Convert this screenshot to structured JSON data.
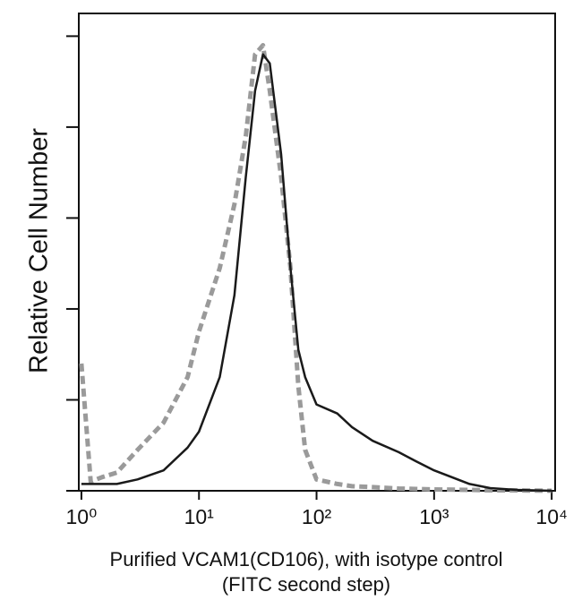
{
  "chart_data": {
    "type": "line",
    "y_label": "Relative Cell Number",
    "x_label_lines": [
      "Purified VCAM1(CD106), with isotype control",
      "(FITC second step)"
    ],
    "x_log_scale": true,
    "xlim": [
      0.95,
      10700
    ],
    "xticks": [
      {
        "value": 1,
        "label": "10⁰"
      },
      {
        "value": 10,
        "label": "10¹"
      },
      {
        "value": 100,
        "label": "10²"
      },
      {
        "value": 1000,
        "label": "10³"
      },
      {
        "value": 10000,
        "label": "10⁴"
      }
    ],
    "ylim": [
      0,
      105
    ],
    "yticks": [
      0,
      20,
      40,
      60,
      80,
      100
    ],
    "ytick_labels": false,
    "x": [
      1,
      1.2,
      1.5,
      2,
      3,
      5,
      8,
      10,
      15,
      20,
      25,
      30,
      35,
      40,
      50,
      60,
      70,
      80,
      100,
      150,
      200,
      300,
      500,
      700,
      1000,
      2000,
      3000,
      5000,
      10000
    ],
    "series": [
      {
        "color": "#9a9a9a",
        "dashed": true,
        "values": [
          28,
          2,
          3,
          4,
          9,
          15,
          25,
          35,
          49,
          63,
          78,
          96,
          98,
          88,
          69,
          49,
          23,
          9,
          2.5,
          1.5,
          1,
          0.8,
          0.5,
          0.4,
          0.3,
          0.2,
          0.1,
          0.1,
          0
        ]
      },
      {
        "color": "#1a1a1a",
        "dashed": false,
        "values": [
          1.5,
          1.5,
          1.5,
          1.5,
          2.5,
          4.5,
          9.5,
          13,
          25,
          43,
          69,
          88,
          96,
          94,
          74,
          49,
          31,
          25,
          19,
          17,
          14,
          11,
          8.5,
          6.5,
          4.5,
          1.5,
          0.6,
          0.2,
          0
        ]
      }
    ]
  }
}
